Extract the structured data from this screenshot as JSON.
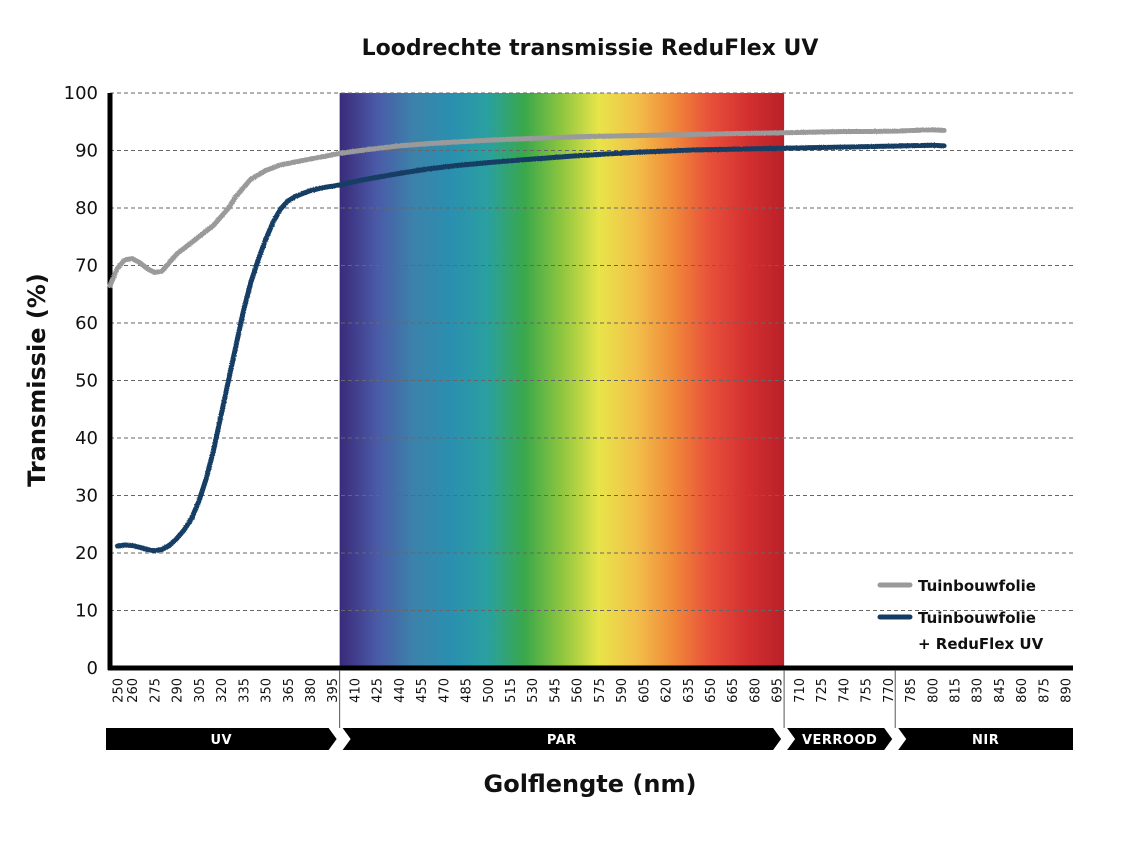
{
  "chart_data": {
    "type": "line",
    "title": "Loodrechte transmissie ReduFlex UV",
    "xlabel": "Golflengte (nm)",
    "ylabel": "Transmissie (%)",
    "ylim": [
      0,
      100
    ],
    "yticks": [
      "0",
      "10",
      "20",
      "30",
      "40",
      "50",
      "60",
      "70",
      "80",
      "90",
      "100"
    ],
    "xlim": [
      245,
      895
    ],
    "xticks": [
      "250",
      "260",
      "275",
      "290",
      "305",
      "320",
      "335",
      "350",
      "365",
      "380",
      "395",
      "410",
      "425",
      "440",
      "455",
      "470",
      "485",
      "500",
      "515",
      "530",
      "545",
      "560",
      "575",
      "590",
      "605",
      "620",
      "635",
      "650",
      "665",
      "680",
      "695",
      "710",
      "725",
      "740",
      "755",
      "770",
      "785",
      "800",
      "815",
      "830",
      "845",
      "860",
      "875",
      "890"
    ],
    "grid": "horizontal dashed",
    "legend_position": "bottom-right",
    "spectrum": {
      "from": 400,
      "to": 700,
      "colors": [
        "#3a2a7a",
        "#4a5aa6",
        "#3c82aa",
        "#2a8fb0",
        "#2aa0a0",
        "#3aa84a",
        "#8ec63f",
        "#e8e44a",
        "#f2c04a",
        "#f08a3a",
        "#e8503a",
        "#d43030",
        "#b82028"
      ]
    },
    "bands": [
      {
        "label": "UV",
        "from": 245,
        "to": 400
      },
      {
        "label": "PAR",
        "from": 400,
        "to": 700
      },
      {
        "label": "VERROOD",
        "from": 700,
        "to": 775
      },
      {
        "label": "NIR",
        "from": 775,
        "to": 895
      }
    ],
    "series": [
      {
        "name": "Tuinbouwfolie",
        "color": "#9a9a9a",
        "x": [
          245,
          250,
          255,
          260,
          265,
          270,
          275,
          280,
          285,
          290,
          295,
          300,
          305,
          310,
          315,
          320,
          325,
          330,
          335,
          340,
          350,
          360,
          370,
          380,
          390,
          400,
          420,
          440,
          460,
          480,
          500,
          520,
          540,
          560,
          580,
          600,
          620,
          640,
          660,
          680,
          700,
          720,
          740,
          760,
          780,
          800,
          808
        ],
        "y": [
          66.5,
          69.5,
          71,
          71.2,
          70.5,
          69.5,
          68.8,
          69,
          70.5,
          72,
          73,
          74,
          75,
          76,
          77,
          78.5,
          80,
          82,
          83.5,
          85,
          86.5,
          87.5,
          88,
          88.5,
          89,
          89.5,
          90.2,
          90.8,
          91.2,
          91.5,
          91.8,
          92,
          92.2,
          92.4,
          92.5,
          92.6,
          92.7,
          92.8,
          92.9,
          93,
          93.1,
          93.2,
          93.3,
          93.3,
          93.4,
          93.6,
          93.5
        ]
      },
      {
        "name": "Tuinbouwfolie\n+ ReduFlex UV",
        "color": "#123c64",
        "x": [
          250,
          255,
          260,
          265,
          270,
          275,
          280,
          285,
          290,
          295,
          300,
          305,
          310,
          315,
          320,
          325,
          330,
          335,
          340,
          345,
          350,
          355,
          360,
          365,
          370,
          375,
          380,
          385,
          390,
          395,
          400,
          410,
          420,
          440,
          460,
          480,
          500,
          520,
          540,
          560,
          580,
          600,
          620,
          640,
          660,
          680,
          700,
          720,
          740,
          760,
          780,
          800,
          808
        ],
        "y": [
          21.2,
          21.4,
          21.3,
          21,
          20.6,
          20.4,
          20.6,
          21.3,
          22.5,
          24,
          26,
          29,
          33,
          38,
          44,
          50,
          56,
          62,
          67,
          71,
          74.5,
          77.5,
          79.8,
          81.2,
          82,
          82.5,
          83,
          83.3,
          83.6,
          83.8,
          84,
          84.6,
          85.1,
          86,
          86.8,
          87.4,
          87.9,
          88.3,
          88.7,
          89.1,
          89.4,
          89.7,
          89.9,
          90.1,
          90.2,
          90.3,
          90.4,
          90.5,
          90.6,
          90.7,
          90.8,
          90.9,
          90.8
        ]
      }
    ]
  }
}
